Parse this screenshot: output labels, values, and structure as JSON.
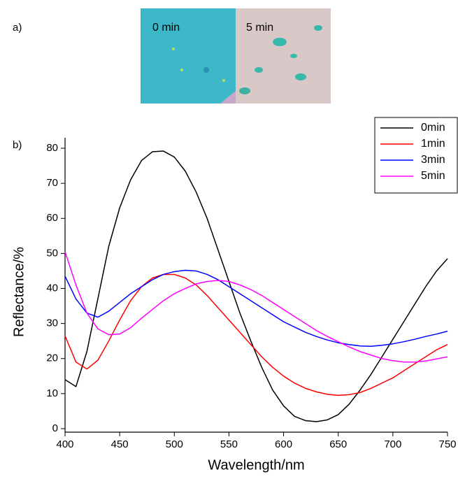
{
  "panel_labels": [
    "a)",
    "b)"
  ],
  "images": [
    {
      "label": "0 min"
    },
    {
      "label": "5 min"
    }
  ],
  "chart_data": {
    "type": "line",
    "x_label": "Wavelength/nm",
    "y_label": "Reflectance/%",
    "x": [
      400,
      410,
      420,
      430,
      440,
      450,
      460,
      470,
      480,
      490,
      500,
      510,
      520,
      530,
      540,
      550,
      560,
      570,
      580,
      590,
      600,
      610,
      620,
      630,
      640,
      650,
      660,
      670,
      680,
      690,
      700,
      710,
      720,
      730,
      740,
      750
    ],
    "series": [
      {
        "name": "0min",
        "color": "#000000",
        "values": [
          14,
          12,
          22,
          37,
          52,
          63,
          71,
          76.5,
          79,
          79.2,
          77.5,
          73.5,
          67.5,
          60,
          51,
          42,
          33,
          25,
          17.5,
          11,
          6.5,
          3.5,
          2.3,
          2,
          2.5,
          4,
          7,
          11,
          15.5,
          20.5,
          25.5,
          30.5,
          35.5,
          40.5,
          45,
          48.5
        ]
      },
      {
        "name": "1min",
        "color": "#ff0000",
        "values": [
          26.5,
          19,
          17,
          19.5,
          25,
          31,
          36.5,
          40.5,
          43,
          44,
          44,
          43,
          41,
          38,
          34.5,
          31,
          27.5,
          24,
          20.5,
          17.5,
          15,
          13,
          11.5,
          10.5,
          9.8,
          9.5,
          9.7,
          10.3,
          11.5,
          13,
          14.5,
          16.5,
          18.5,
          20.5,
          22.5,
          24
        ]
      },
      {
        "name": "3min",
        "color": "#0000ff",
        "values": [
          43.5,
          37,
          33,
          31.8,
          33.5,
          36,
          38.5,
          40.5,
          42.5,
          44,
          44.8,
          45.2,
          45,
          44,
          42.5,
          40.5,
          38.5,
          36.5,
          34.5,
          32.5,
          30.5,
          29,
          27.5,
          26.3,
          25.3,
          24.5,
          24,
          23.6,
          23.5,
          23.8,
          24.2,
          24.8,
          25.5,
          26.3,
          27,
          27.8
        ]
      },
      {
        "name": "5min",
        "color": "#ff00ff",
        "values": [
          50.5,
          41,
          33,
          28.5,
          26.8,
          27,
          28.8,
          31.5,
          34,
          36.5,
          38.5,
          40,
          41.3,
          42,
          42.3,
          42,
          41,
          39.7,
          38,
          36,
          34,
          32,
          30,
          28,
          26.3,
          24.8,
          23.3,
          22,
          21,
          20,
          19.4,
          19,
          19,
          19.3,
          19.9,
          20.5
        ]
      }
    ],
    "xlim": [
      400,
      750
    ],
    "xticks": [
      400,
      450,
      500,
      550,
      600,
      650,
      700,
      750
    ],
    "ylim": [
      -1,
      83
    ],
    "yticks": [
      0,
      10,
      20,
      30,
      40,
      50,
      60,
      70,
      80
    ],
    "grid": false,
    "legend": "upper right"
  }
}
